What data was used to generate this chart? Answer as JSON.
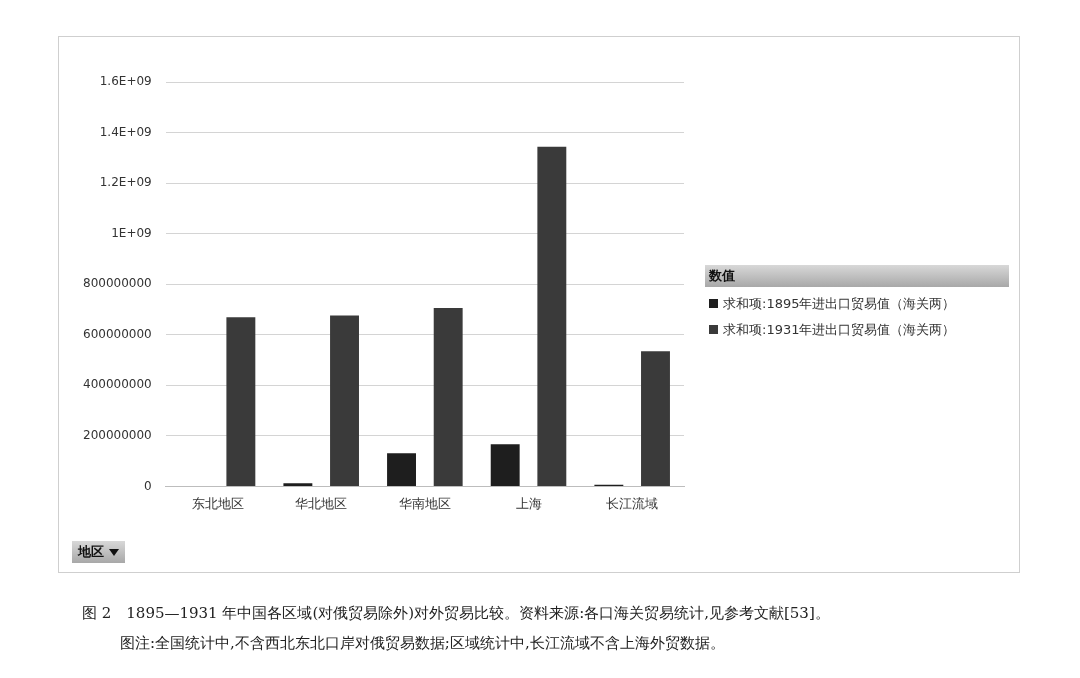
{
  "chart_data": {
    "type": "bar",
    "xlabel": "地区",
    "legend_title": "数值",
    "categories": [
      "东北地区",
      "华北地区",
      "华南地区",
      "上海",
      "长江流域"
    ],
    "series": [
      {
        "name": "求和项:1895年进出口贸易值（海关两）",
        "color": "#1e1e1e",
        "values": [
          0,
          12000000,
          131000000,
          167000000,
          7000000
        ]
      },
      {
        "name": "求和项:1931年进出口贸易值（海关两）",
        "color": "#3a3a3a",
        "values": [
          669000000,
          676000000,
          706000000,
          1344000000,
          535000000
        ]
      }
    ],
    "ylim": [
      0,
      1600000000
    ],
    "yticks": [
      0,
      200000000,
      400000000,
      600000000,
      800000000,
      {
        "value": 1000000000,
        "label": "1E+09"
      },
      {
        "value": 1200000000,
        "label": "1.2E+09"
      },
      {
        "value": 1400000000,
        "label": "1.4E+09"
      },
      {
        "value": 1600000000,
        "label": "1.6E+09"
      }
    ],
    "grid": "y",
    "legend": "right",
    "annotations": [
      "图 2　1895—1931 年中国各区域(对俄贸易除外)对外贸易比较。资料来源:各口海关贸易统计,见参考文献[53]。",
      "图注:全国统计中,不含西北东北口岸对俄贸易数据;区域统计中,长江流域不含上海外贸数据。"
    ]
  }
}
